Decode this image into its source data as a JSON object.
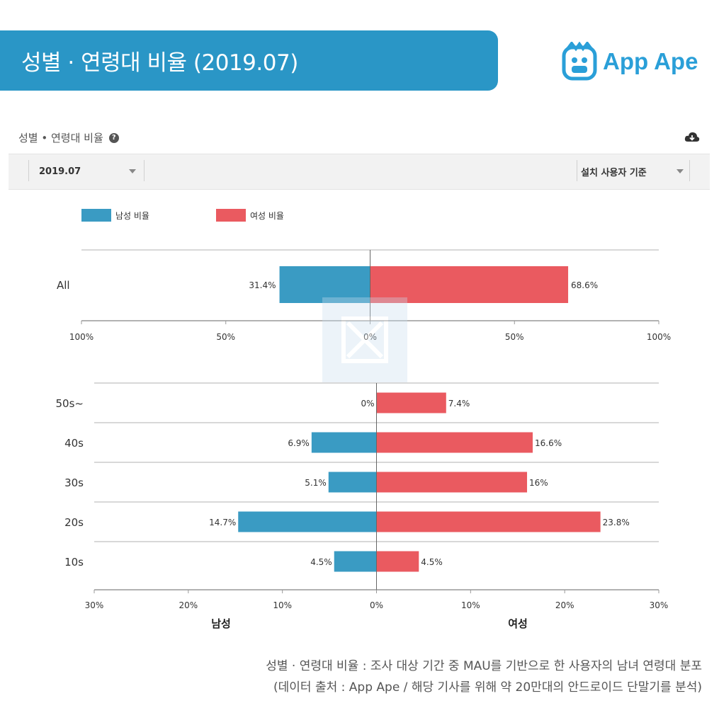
{
  "header": {
    "title": "성별 · 연령대 비율 (2019.07)"
  },
  "logo": {
    "text": "App Ape"
  },
  "widget": {
    "title": "성별 • 연령대 비율",
    "help_glyph": "?",
    "period_select": "2019.07",
    "basis_select": "설치 사용자 기준"
  },
  "legend": {
    "male": "남성 비율",
    "female": "여성 비율"
  },
  "colors": {
    "banner": "#2a96c6",
    "male": "#3a9bc3",
    "female": "#ea5a60",
    "logo": "#2a9fd8"
  },
  "chart_data": [
    {
      "type": "bar",
      "orientation": "horizontal-diverging",
      "categories": [
        "All"
      ],
      "series": [
        {
          "name": "남성 비율",
          "values": [
            31.4
          ],
          "labels": [
            "31.4%"
          ]
        },
        {
          "name": "여성 비율",
          "values": [
            68.6
          ],
          "labels": [
            "68.6%"
          ]
        }
      ],
      "xlim": [
        -100,
        100
      ],
      "ticks": [
        "100%",
        "50%",
        "0%",
        "50%",
        "100%"
      ]
    },
    {
      "type": "bar",
      "orientation": "horizontal-diverging",
      "categories": [
        "50s~",
        "40s",
        "30s",
        "20s",
        "10s"
      ],
      "series": [
        {
          "name": "남성",
          "values": [
            0,
            6.9,
            5.1,
            14.7,
            4.5
          ],
          "labels": [
            "0%",
            "6.9%",
            "5.1%",
            "14.7%",
            "4.5%"
          ]
        },
        {
          "name": "여성",
          "values": [
            7.4,
            16.6,
            16,
            23.8,
            4.5
          ],
          "labels": [
            "7.4%",
            "16.6%",
            "16%",
            "23.8%",
            "4.5%"
          ]
        }
      ],
      "xlim": [
        -30,
        30
      ],
      "ticks": [
        "30%",
        "20%",
        "10%",
        "0%",
        "10%",
        "20%",
        "30%"
      ],
      "xlabel_left": "남성",
      "xlabel_right": "여성"
    }
  ],
  "caption": {
    "line1": "성별 · 연령대 비율 : 조사 대상 기간 중 MAU를 기반으로 한 사용자의 남녀 연령대 분포",
    "line2": "(데이터 출처 : App Ape / 해당 기사를 위해 약 20만대의 안드로이드 단말기를 분석)"
  }
}
